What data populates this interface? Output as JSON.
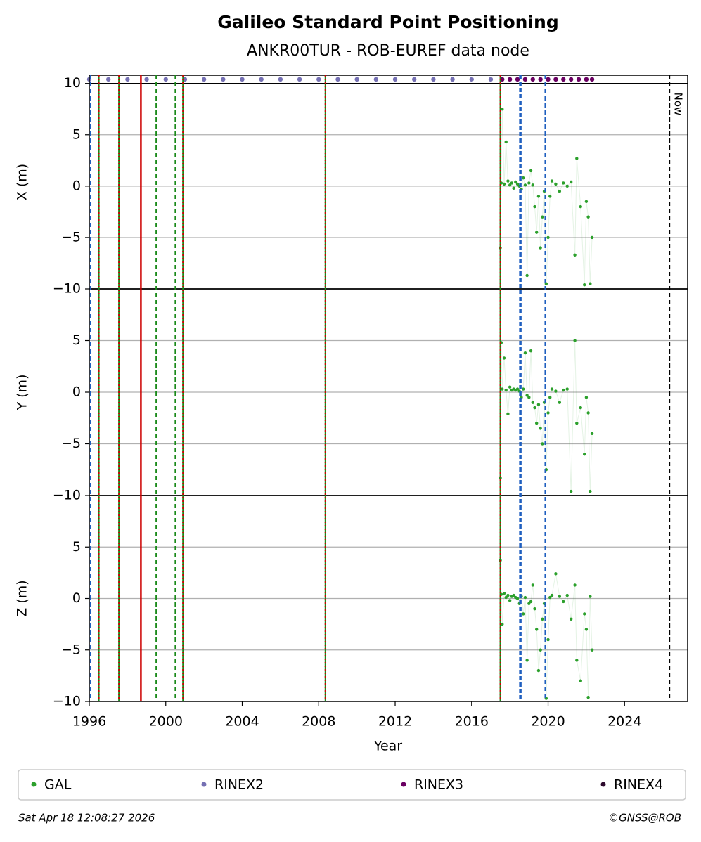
{
  "title": "Galileo Standard Point Positioning",
  "subtitle": "ANKR00TUR - ROB-EUREF data node",
  "xlabel": "Year",
  "now_label": "Now",
  "now_x": 2026.35,
  "footer_left": "Sat Apr 18 12:08:27 2026",
  "footer_right": "©GNSS@ROB",
  "xlim": [
    1996,
    2027.3
  ],
  "xticks": [
    1996,
    2000,
    2004,
    2008,
    2012,
    2016,
    2020,
    2024
  ],
  "events": [
    {
      "x": 1996.07,
      "style": "blue-dashed"
    },
    {
      "x": 1996.5,
      "style": "green-red"
    },
    {
      "x": 1997.55,
      "style": "green-red"
    },
    {
      "x": 1998.7,
      "style": "red"
    },
    {
      "x": 1999.5,
      "style": "green-dashed"
    },
    {
      "x": 2000.5,
      "style": "green-dashed"
    },
    {
      "x": 2000.9,
      "style": "green-red"
    },
    {
      "x": 2008.35,
      "style": "green-red"
    },
    {
      "x": 2017.5,
      "style": "green-red"
    },
    {
      "x": 2018.55,
      "style": "blue-thick"
    },
    {
      "x": 2019.85,
      "style": "blue-dashed"
    }
  ],
  "chart_data": [
    {
      "type": "scatter",
      "ylabel": "X (m)",
      "ylim": [
        -10,
        10.8
      ],
      "yticks": [
        {
          "value": -10,
          "label": "−10"
        },
        {
          "value": -5,
          "label": "−5"
        },
        0,
        5,
        10
      ],
      "grid": true,
      "series": [
        {
          "name": "GAL",
          "color": "#2ca02c",
          "x": [
            2017.5,
            2017.55,
            2017.6,
            2017.7,
            2017.8,
            2017.9,
            2018.0,
            2018.1,
            2018.2,
            2018.3,
            2018.4,
            2018.5,
            2018.6,
            2018.7,
            2018.8,
            2018.9,
            2019.0,
            2019.1,
            2019.2,
            2019.3,
            2019.4,
            2019.5,
            2019.6,
            2019.7,
            2019.8,
            2019.9,
            2020.0,
            2020.1,
            2020.2,
            2020.4,
            2020.6,
            2020.8,
            2021.0,
            2021.2,
            2021.4,
            2021.5,
            2021.7,
            2021.9,
            2022.0,
            2022.1,
            2022.2,
            2022.3
          ],
          "values": [
            -6,
            0.3,
            7.5,
            0.2,
            4.3,
            0.5,
            0.1,
            0.3,
            -0.2,
            0.4,
            0.2,
            0,
            -0.3,
            0.8,
            0.1,
            -8.7,
            0.3,
            1.5,
            0.1,
            -2,
            -4.5,
            -1,
            -6,
            -3,
            -0.5,
            -9.5,
            -5,
            -1,
            0.5,
            0.2,
            -0.5,
            0.3,
            0,
            0.4,
            -6.7,
            2.7,
            -2,
            -9.6,
            -1.5,
            -3,
            -9.5,
            -5
          ]
        },
        {
          "name": "RINEX2",
          "color": "#7570b3",
          "x": [
            1996.0,
            1997.0,
            1998.0,
            1999.0,
            2000.0,
            2001.0,
            2002.0,
            2003.0,
            2004.0,
            2005.0,
            2006.0,
            2007.0,
            2008.0,
            2009.0,
            2010.0,
            2011.0,
            2012.0,
            2013.0,
            2014.0,
            2015.0,
            2016.0,
            2017.0
          ],
          "values": [
            10.4,
            10.4,
            10.4,
            10.4,
            10.4,
            10.4,
            10.4,
            10.4,
            10.4,
            10.4,
            10.4,
            10.4,
            10.4,
            10.4,
            10.4,
            10.4,
            10.4,
            10.4,
            10.4,
            10.4,
            10.4,
            10.4
          ]
        },
        {
          "name": "RINEX3",
          "color": "#6a0062",
          "x": [
            2017.6,
            2018.0,
            2018.4,
            2018.8,
            2019.2,
            2019.6,
            2020.0,
            2020.4,
            2020.8,
            2021.2,
            2021.6,
            2022.0,
            2022.3
          ],
          "values": [
            10.4,
            10.4,
            10.4,
            10.4,
            10.4,
            10.4,
            10.4,
            10.4,
            10.4,
            10.4,
            10.4,
            10.4,
            10.4
          ]
        },
        {
          "name": "RINEX4",
          "color": "#2d0a2d",
          "x": [],
          "values": []
        }
      ]
    },
    {
      "type": "scatter",
      "ylabel": "Y (m)",
      "ylim": [
        -10,
        10
      ],
      "yticks": [
        {
          "value": -10,
          "label": "−10"
        },
        {
          "value": -5,
          "label": "−5"
        },
        0,
        5
      ],
      "grid": true,
      "series": [
        {
          "name": "GAL",
          "color": "#2ca02c",
          "x": [
            2017.5,
            2017.55,
            2017.6,
            2017.7,
            2017.8,
            2017.9,
            2018.0,
            2018.1,
            2018.2,
            2018.3,
            2018.4,
            2018.5,
            2018.6,
            2018.7,
            2018.8,
            2018.9,
            2019.0,
            2019.1,
            2019.2,
            2019.3,
            2019.4,
            2019.5,
            2019.6,
            2019.7,
            2019.8,
            2019.9,
            2020.0,
            2020.1,
            2020.2,
            2020.4,
            2020.6,
            2020.8,
            2021.0,
            2021.2,
            2021.4,
            2021.5,
            2021.7,
            2021.9,
            2022.0,
            2022.1,
            2022.2,
            2022.3
          ],
          "values": [
            -8.3,
            4.8,
            0.3,
            3.3,
            0.2,
            -2.1,
            0.5,
            0.2,
            0.3,
            0.2,
            0.3,
            0.1,
            -0.5,
            0.3,
            3.8,
            -0.3,
            -0.5,
            4,
            -1,
            -1.5,
            -3,
            -1.2,
            -3.5,
            -5,
            -1,
            -7.5,
            -2,
            -0.5,
            0.3,
            0.1,
            -1,
            0.2,
            0.3,
            -9.6,
            5,
            -3,
            -1.5,
            -6,
            -0.5,
            -2,
            -9.6,
            -4
          ]
        }
      ]
    },
    {
      "type": "scatter",
      "ylabel": "Z (m)",
      "ylim": [
        -10,
        10
      ],
      "yticks": [
        {
          "value": -10,
          "label": "−10"
        },
        {
          "value": -5,
          "label": "−5"
        },
        0,
        5
      ],
      "grid": true,
      "series": [
        {
          "name": "GAL",
          "color": "#2ca02c",
          "x": [
            2017.5,
            2017.55,
            2017.6,
            2017.7,
            2017.8,
            2017.9,
            2018.0,
            2018.1,
            2018.2,
            2018.3,
            2018.4,
            2018.5,
            2018.6,
            2018.7,
            2018.8,
            2018.9,
            2019.0,
            2019.1,
            2019.2,
            2019.3,
            2019.4,
            2019.5,
            2019.6,
            2019.7,
            2019.8,
            2019.9,
            2020.0,
            2020.1,
            2020.2,
            2020.4,
            2020.6,
            2020.8,
            2021.0,
            2021.2,
            2021.4,
            2021.5,
            2021.7,
            2021.9,
            2022.0,
            2022.1,
            2022.2,
            2022.3
          ],
          "values": [
            3.7,
            0.4,
            -2.5,
            0.5,
            0.1,
            0.3,
            -0.2,
            0.2,
            0.3,
            0.1,
            0,
            -0.5,
            0.2,
            -1.5,
            0.1,
            -6,
            -0.5,
            -0.3,
            1.3,
            -1,
            -3,
            -7,
            -5,
            -2,
            -0.5,
            -9.7,
            -4,
            0.1,
            0.3,
            2.4,
            0.2,
            -0.3,
            0.3,
            -2,
            1.3,
            -6,
            -8,
            -1.5,
            -3,
            -9.6,
            0.2,
            -5
          ]
        }
      ]
    }
  ]
}
